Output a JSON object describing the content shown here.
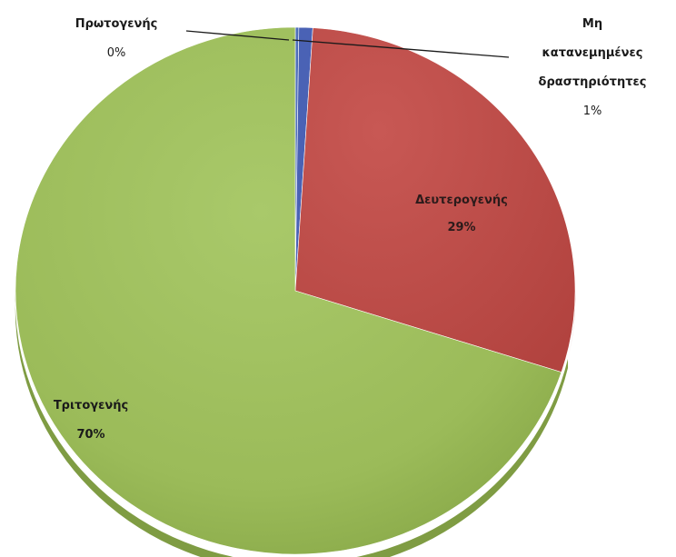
{
  "chart_data": {
    "type": "pie",
    "title": "",
    "slices": [
      {
        "label": "Πρωτογενής",
        "value": 0.2,
        "display": "0%",
        "color": "#4f6fb9",
        "label_line1": "Πρωτογενής",
        "label_line2": "",
        "label_line3": "",
        "pct_text": "0%"
      },
      {
        "label": "Μη κατανεμημένες δραστηριότητες",
        "value": 0.8,
        "display": "1%",
        "color": "#4a62b5",
        "label_line1": "Μη",
        "label_line2": "κατανεμημένες",
        "label_line3": "δραστηριότητες",
        "pct_text": "1%"
      },
      {
        "label": "Δευτερογενής",
        "value": 29,
        "display": "29%",
        "color": "#c0504d",
        "label_line1": "Δευτερογενής",
        "label_line2": "",
        "label_line3": "",
        "pct_text": "29%"
      },
      {
        "label": "Τριτογενής",
        "value": 70,
        "display": "70%",
        "color": "#9bbb59",
        "label_line1": "Τριτογενής",
        "label_line2": "",
        "label_line3": "",
        "pct_text": "70%"
      }
    ]
  }
}
